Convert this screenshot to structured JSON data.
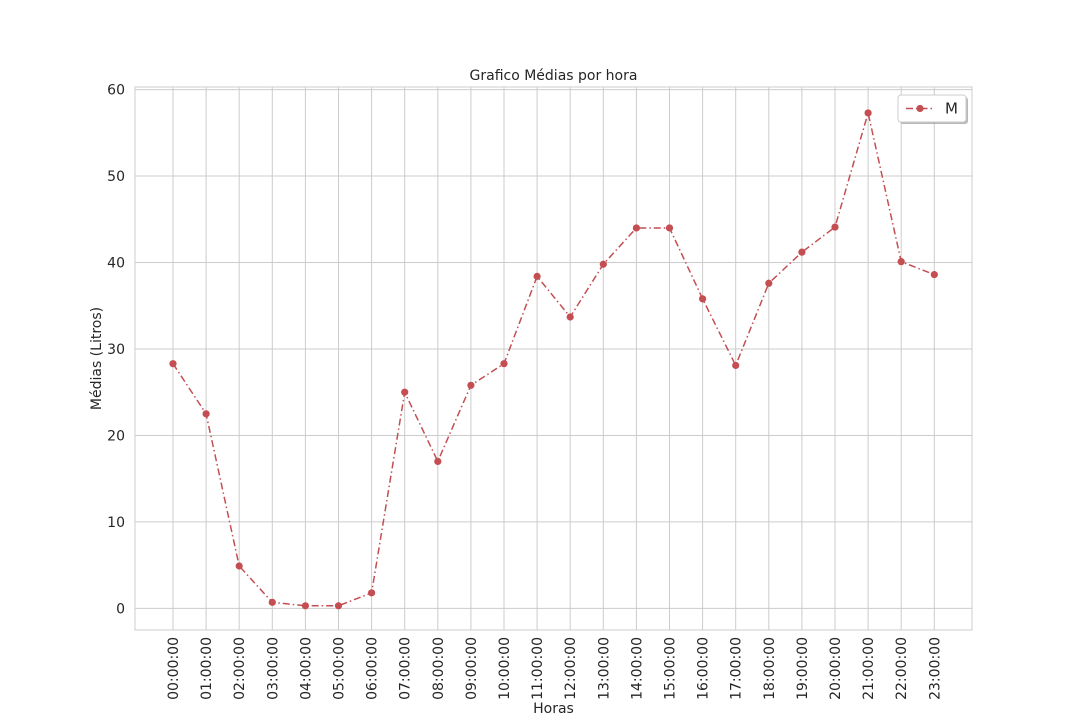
{
  "chart_data": {
    "type": "line",
    "title": "Grafico Médias por hora",
    "xlabel": "Horas",
    "ylabel": "Médias (Litros)",
    "categories": [
      "00:00:00",
      "01:00:00",
      "02:00:00",
      "03:00:00",
      "04:00:00",
      "05:00:00",
      "06:00:00",
      "07:00:00",
      "08:00:00",
      "09:00:00",
      "10:00:00",
      "11:00:00",
      "12:00:00",
      "13:00:00",
      "14:00:00",
      "15:00:00",
      "16:00:00",
      "17:00:00",
      "18:00:00",
      "19:00:00",
      "20:00:00",
      "21:00:00",
      "22:00:00",
      "23:00:00"
    ],
    "series": [
      {
        "name": "M",
        "color": "#c44e52",
        "values": [
          28.3,
          22.5,
          4.9,
          0.7,
          0.3,
          0.3,
          1.8,
          25.0,
          17.0,
          25.8,
          28.3,
          38.4,
          33.7,
          39.8,
          44.0,
          44.0,
          35.8,
          28.1,
          37.6,
          41.2,
          44.1,
          57.3,
          40.1,
          38.6
        ]
      }
    ],
    "ylim": [
      -2.5,
      60.3
    ],
    "yticks": [
      0,
      10,
      20,
      30,
      40,
      50,
      60
    ],
    "ytick_labels": [
      "0",
      "10",
      "20",
      "30",
      "40",
      "50",
      "60"
    ],
    "grid": true,
    "legend": "top-right",
    "line_style": "dash-dot",
    "marker": "circle"
  }
}
